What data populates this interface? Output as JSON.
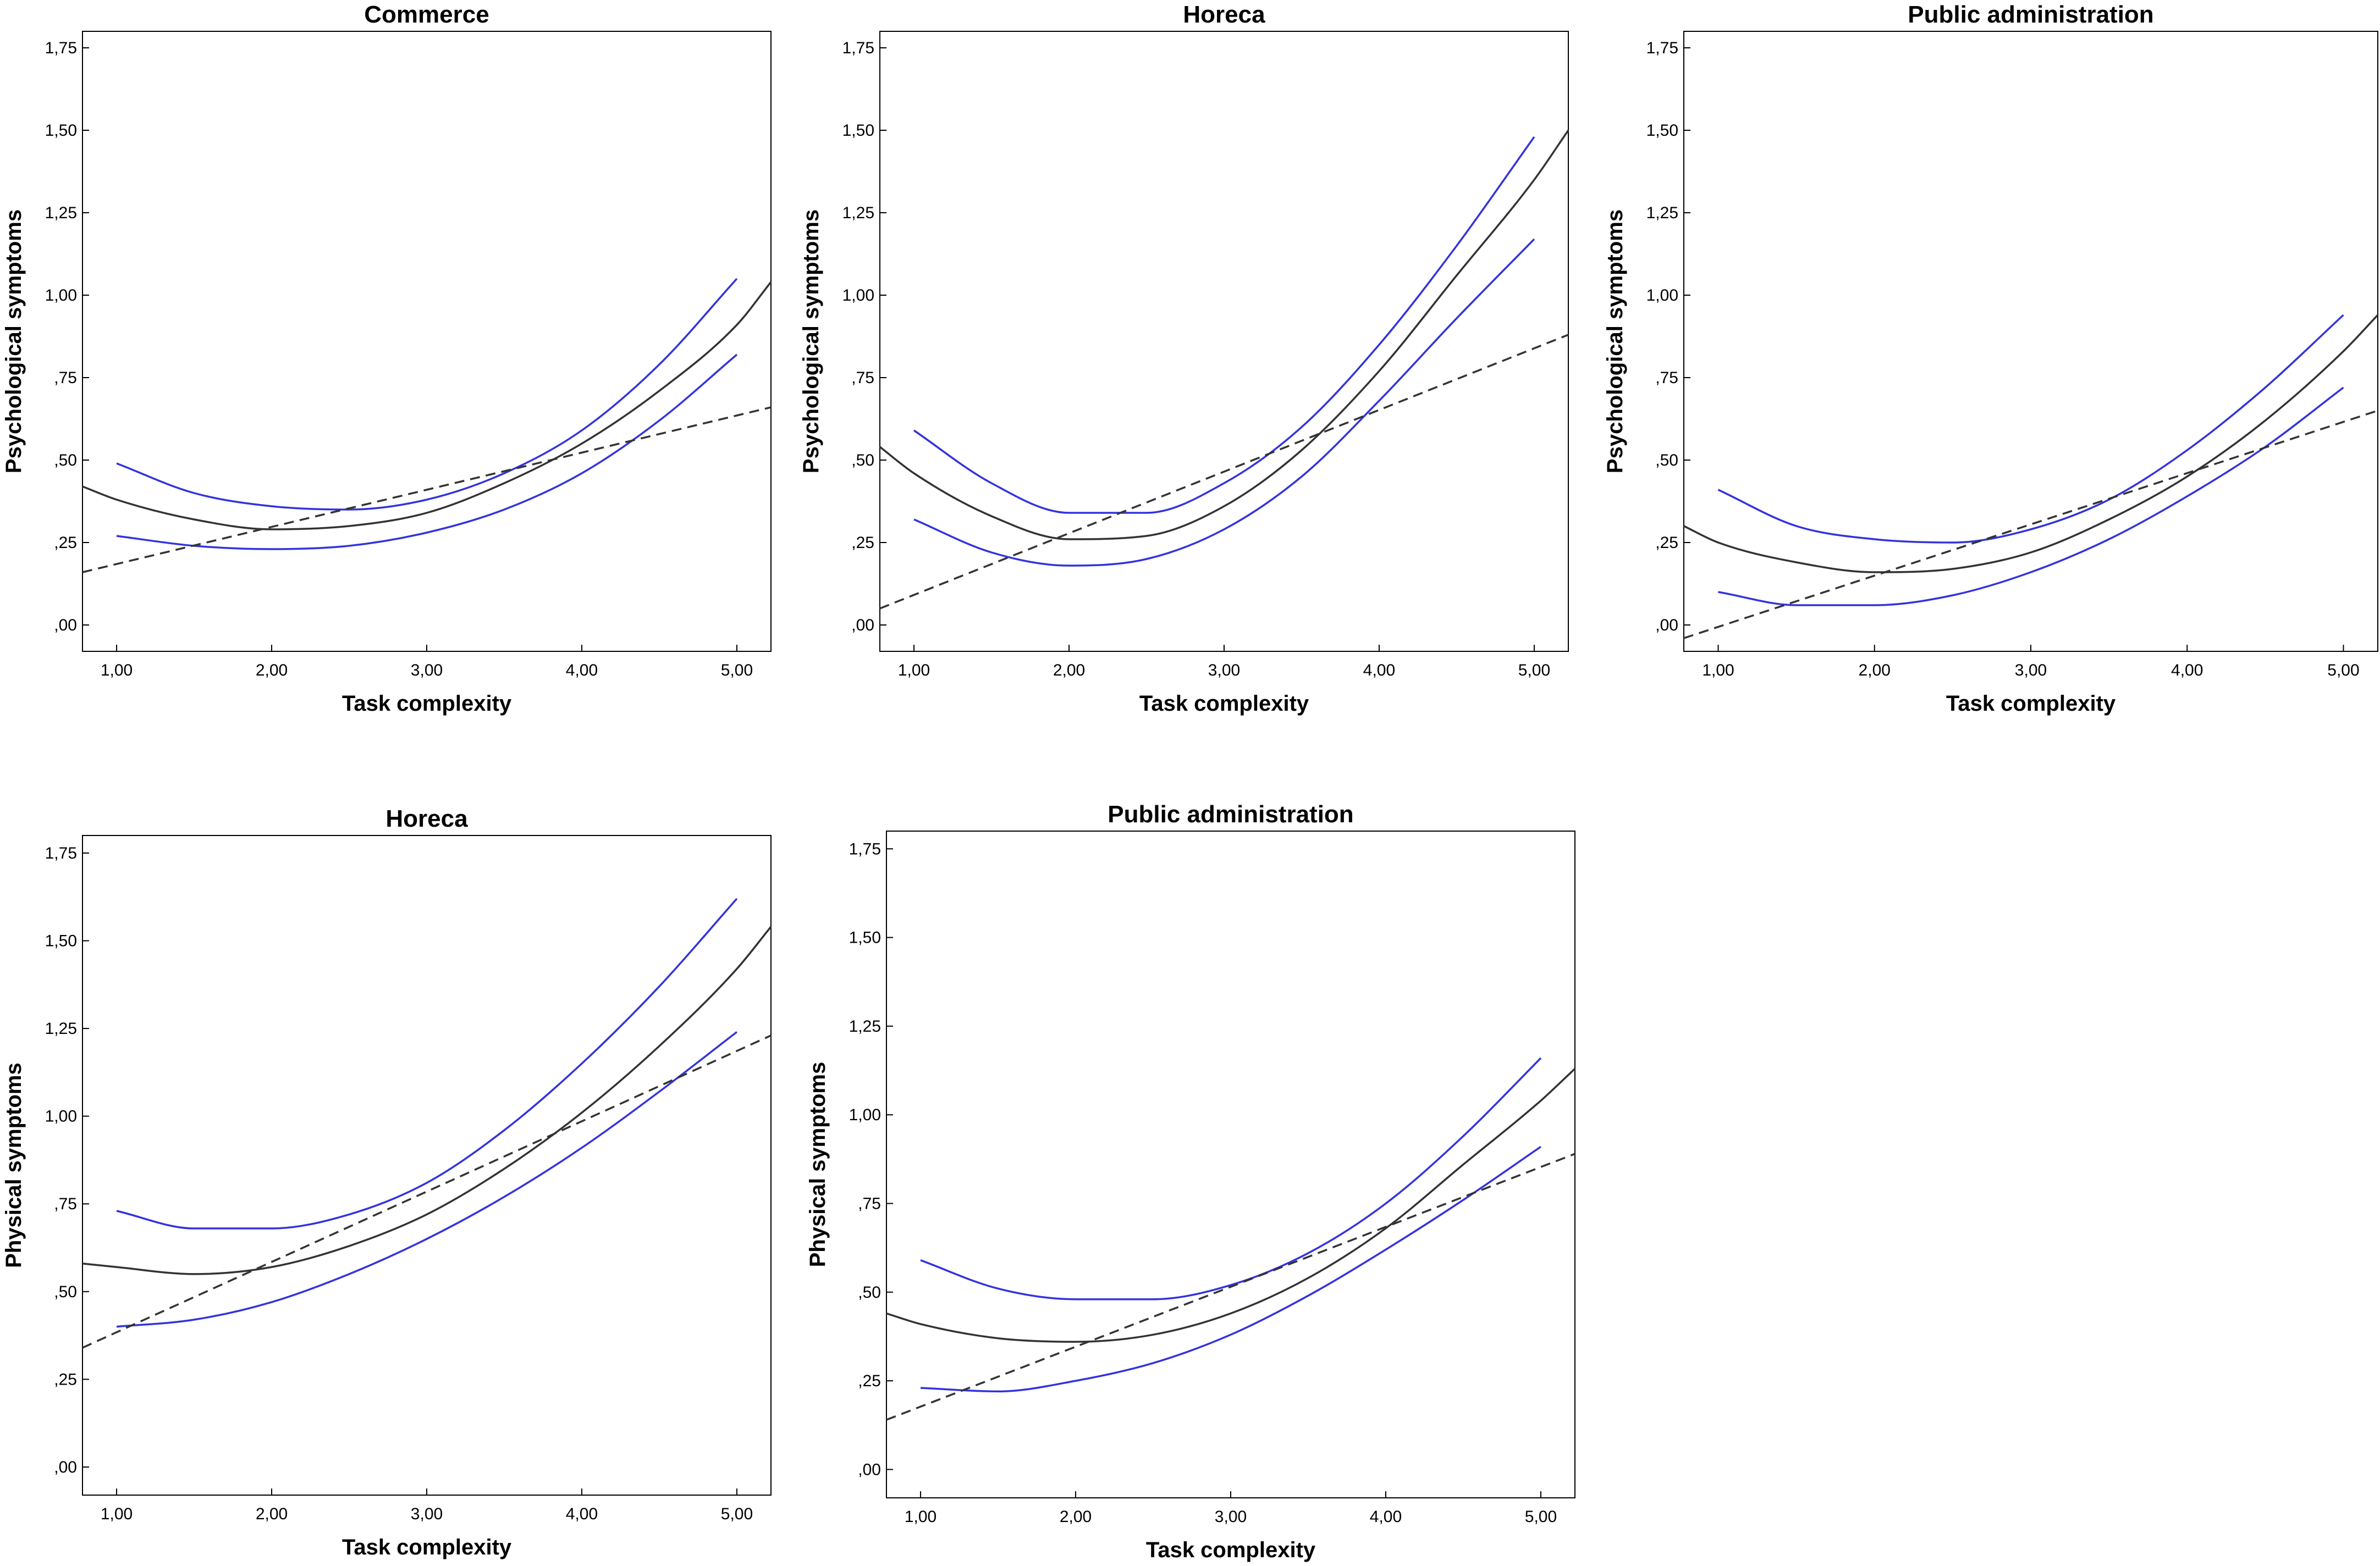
{
  "chart_data": [
    {
      "type": "line",
      "title": "Commerce",
      "xlabel": "Task complexity",
      "ylabel": "Psychological symptoms",
      "xlim": [
        0.78,
        5.22
      ],
      "ylim": [
        -0.08,
        1.8
      ],
      "xticks": [
        1,
        2,
        3,
        4,
        5
      ],
      "xtick_labels": [
        "1,00",
        "2,00",
        "3,00",
        "4,00",
        "5,00"
      ],
      "yticks": [
        0,
        0.25,
        0.5,
        0.75,
        1,
        1.25,
        1.5,
        1.75
      ],
      "ytick_labels": [
        ",00",
        ",25",
        ",50",
        ",75",
        "1,00",
        "1,25",
        "1,50",
        "1,75"
      ],
      "series": [
        {
          "name": "fit",
          "style": "solid",
          "color": "#333333",
          "x": [
            0.78,
            1.0,
            1.5,
            2.0,
            2.5,
            3.0,
            3.5,
            4.0,
            4.5,
            5.0,
            5.22
          ],
          "y": [
            0.42,
            0.38,
            0.32,
            0.29,
            0.3,
            0.34,
            0.43,
            0.55,
            0.71,
            0.91,
            1.04
          ]
        },
        {
          "name": "upper",
          "style": "solid",
          "color": "#3333dd",
          "x": [
            1.0,
            1.5,
            2.0,
            2.5,
            3.0,
            3.5,
            4.0,
            4.5,
            5.0
          ],
          "y": [
            0.49,
            0.4,
            0.36,
            0.35,
            0.38,
            0.46,
            0.59,
            0.79,
            1.05
          ]
        },
        {
          "name": "lower",
          "style": "solid",
          "color": "#3333dd",
          "x": [
            1.0,
            1.5,
            2.0,
            2.5,
            3.0,
            3.5,
            4.0,
            4.5,
            5.0
          ],
          "y": [
            0.27,
            0.24,
            0.23,
            0.24,
            0.28,
            0.35,
            0.46,
            0.62,
            0.82
          ]
        },
        {
          "name": "linear",
          "style": "dashed",
          "color": "#333333",
          "x": [
            0.78,
            5.22
          ],
          "y": [
            0.16,
            0.66
          ]
        }
      ]
    },
    {
      "type": "line",
      "title": "Horeca",
      "xlabel": "Task complexity",
      "ylabel": "Psychological symptoms",
      "xlim": [
        0.78,
        5.22
      ],
      "ylim": [
        -0.08,
        1.8
      ],
      "xticks": [
        1,
        2,
        3,
        4,
        5
      ],
      "xtick_labels": [
        "1,00",
        "2,00",
        "3,00",
        "4,00",
        "5,00"
      ],
      "yticks": [
        0,
        0.25,
        0.5,
        0.75,
        1,
        1.25,
        1.5,
        1.75
      ],
      "ytick_labels": [
        ",00",
        ",25",
        ",50",
        ",75",
        "1,00",
        "1,25",
        "1,50",
        "1,75"
      ],
      "series": [
        {
          "name": "fit",
          "style": "solid",
          "color": "#333333",
          "x": [
            0.78,
            1.0,
            1.5,
            2.0,
            2.5,
            3.0,
            3.5,
            4.0,
            4.5,
            5.0,
            5.22
          ],
          "y": [
            0.54,
            0.46,
            0.33,
            0.26,
            0.27,
            0.36,
            0.53,
            0.77,
            1.06,
            1.35,
            1.5
          ]
        },
        {
          "name": "upper",
          "style": "solid",
          "color": "#3333dd",
          "x": [
            1.0,
            1.5,
            2.0,
            2.5,
            3.0,
            3.5,
            4.0,
            4.5,
            5.0
          ],
          "y": [
            0.59,
            0.43,
            0.34,
            0.34,
            0.43,
            0.6,
            0.85,
            1.15,
            1.48
          ]
        },
        {
          "name": "lower",
          "style": "solid",
          "color": "#3333dd",
          "x": [
            1.0,
            1.5,
            2.0,
            2.5,
            3.0,
            3.5,
            4.0,
            4.5,
            5.0
          ],
          "y": [
            0.32,
            0.22,
            0.18,
            0.2,
            0.29,
            0.45,
            0.68,
            0.93,
            1.17
          ]
        },
        {
          "name": "linear",
          "style": "dashed",
          "color": "#333333",
          "x": [
            0.78,
            5.22
          ],
          "y": [
            0.05,
            0.88
          ]
        }
      ]
    },
    {
      "type": "line",
      "title": "Public administration",
      "xlabel": "Task complexity",
      "ylabel": "Psychological symptoms",
      "xlim": [
        0.78,
        5.22
      ],
      "ylim": [
        -0.08,
        1.8
      ],
      "xticks": [
        1,
        2,
        3,
        4,
        5
      ],
      "xtick_labels": [
        "1,00",
        "2,00",
        "3,00",
        "4,00",
        "5,00"
      ],
      "yticks": [
        0,
        0.25,
        0.5,
        0.75,
        1,
        1.25,
        1.5,
        1.75
      ],
      "ytick_labels": [
        ",00",
        ",25",
        ",50",
        ",75",
        "1,00",
        "1,25",
        "1,50",
        "1,75"
      ],
      "series": [
        {
          "name": "fit",
          "style": "solid",
          "color": "#333333",
          "x": [
            0.78,
            1.0,
            1.5,
            2.0,
            2.5,
            3.0,
            3.5,
            4.0,
            4.5,
            5.0,
            5.22
          ],
          "y": [
            0.3,
            0.25,
            0.19,
            0.16,
            0.17,
            0.22,
            0.32,
            0.45,
            0.62,
            0.83,
            0.94
          ]
        },
        {
          "name": "upper",
          "style": "solid",
          "color": "#3333dd",
          "x": [
            1.0,
            1.5,
            2.0,
            2.5,
            3.0,
            3.5,
            4.0,
            4.5,
            5.0
          ],
          "y": [
            0.41,
            0.3,
            0.26,
            0.25,
            0.29,
            0.38,
            0.53,
            0.72,
            0.94
          ]
        },
        {
          "name": "lower",
          "style": "solid",
          "color": "#3333dd",
          "x": [
            1.0,
            1.5,
            2.0,
            2.5,
            3.0,
            3.5,
            4.0,
            4.5,
            5.0
          ],
          "y": [
            0.1,
            0.06,
            0.06,
            0.09,
            0.16,
            0.26,
            0.39,
            0.54,
            0.72
          ]
        },
        {
          "name": "linear",
          "style": "dashed",
          "color": "#333333",
          "x": [
            0.78,
            5.22
          ],
          "y": [
            -0.04,
            0.65
          ]
        }
      ]
    },
    {
      "type": "line",
      "title": "Horeca",
      "xlabel": "Task complexity",
      "ylabel": "Physical symptoms",
      "xlim": [
        0.78,
        5.22
      ],
      "ylim": [
        -0.08,
        1.8
      ],
      "xticks": [
        1,
        2,
        3,
        4,
        5
      ],
      "xtick_labels": [
        "1,00",
        "2,00",
        "3,00",
        "4,00",
        "5,00"
      ],
      "yticks": [
        0,
        0.25,
        0.5,
        0.75,
        1,
        1.25,
        1.5,
        1.75
      ],
      "ytick_labels": [
        ",00",
        ",25",
        ",50",
        ",75",
        "1,00",
        "1,25",
        "1,50",
        "1,75"
      ],
      "series": [
        {
          "name": "fit",
          "style": "solid",
          "color": "#333333",
          "x": [
            0.78,
            1.0,
            1.5,
            2.0,
            2.5,
            3.0,
            3.5,
            4.0,
            4.5,
            5.0,
            5.22
          ],
          "y": [
            0.58,
            0.57,
            0.55,
            0.57,
            0.63,
            0.72,
            0.85,
            1.01,
            1.2,
            1.42,
            1.54
          ]
        },
        {
          "name": "upper",
          "style": "solid",
          "color": "#3333dd",
          "x": [
            1.0,
            1.5,
            2.0,
            2.5,
            3.0,
            3.5,
            4.0,
            4.5,
            5.0
          ],
          "y": [
            0.73,
            0.68,
            0.68,
            0.72,
            0.81,
            0.96,
            1.15,
            1.37,
            1.62
          ]
        },
        {
          "name": "lower",
          "style": "solid",
          "color": "#3333dd",
          "x": [
            1.0,
            1.5,
            2.0,
            2.5,
            3.0,
            3.5,
            4.0,
            4.5,
            5.0
          ],
          "y": [
            0.4,
            0.42,
            0.47,
            0.55,
            0.65,
            0.77,
            0.91,
            1.07,
            1.24
          ]
        },
        {
          "name": "linear",
          "style": "dashed",
          "color": "#333333",
          "x": [
            0.78,
            5.22
          ],
          "y": [
            0.34,
            1.23
          ]
        }
      ]
    },
    {
      "type": "line",
      "title": "Public administration",
      "xlabel": "Task complexity",
      "ylabel": "Physical symptoms",
      "xlim": [
        0.78,
        5.22
      ],
      "ylim": [
        -0.08,
        1.8
      ],
      "xticks": [
        1,
        2,
        3,
        4,
        5
      ],
      "xtick_labels": [
        "1,00",
        "2,00",
        "3,00",
        "4,00",
        "5,00"
      ],
      "yticks": [
        0,
        0.25,
        0.5,
        0.75,
        1,
        1.25,
        1.5,
        1.75
      ],
      "ytick_labels": [
        ",00",
        ",25",
        ",50",
        ",75",
        "1,00",
        "1,25",
        "1,50",
        "1,75"
      ],
      "series": [
        {
          "name": "fit",
          "style": "solid",
          "color": "#333333",
          "x": [
            0.78,
            1.0,
            1.5,
            2.0,
            2.5,
            3.0,
            3.5,
            4.0,
            4.5,
            5.0,
            5.22
          ],
          "y": [
            0.44,
            0.41,
            0.37,
            0.36,
            0.38,
            0.44,
            0.54,
            0.68,
            0.86,
            1.04,
            1.13
          ]
        },
        {
          "name": "upper",
          "style": "solid",
          "color": "#3333dd",
          "x": [
            1.0,
            1.5,
            2.0,
            2.5,
            3.0,
            3.5,
            4.0,
            4.5,
            5.0
          ],
          "y": [
            0.59,
            0.51,
            0.48,
            0.48,
            0.52,
            0.61,
            0.75,
            0.94,
            1.16
          ]
        },
        {
          "name": "lower",
          "style": "solid",
          "color": "#3333dd",
          "x": [
            1.0,
            1.5,
            2.0,
            2.5,
            3.0,
            3.5,
            4.0,
            4.5,
            5.0
          ],
          "y": [
            0.23,
            0.22,
            0.25,
            0.3,
            0.38,
            0.49,
            0.62,
            0.76,
            0.91
          ]
        },
        {
          "name": "linear",
          "style": "dashed",
          "color": "#333333",
          "x": [
            0.78,
            5.22
          ],
          "y": [
            0.14,
            0.89
          ]
        }
      ]
    }
  ]
}
